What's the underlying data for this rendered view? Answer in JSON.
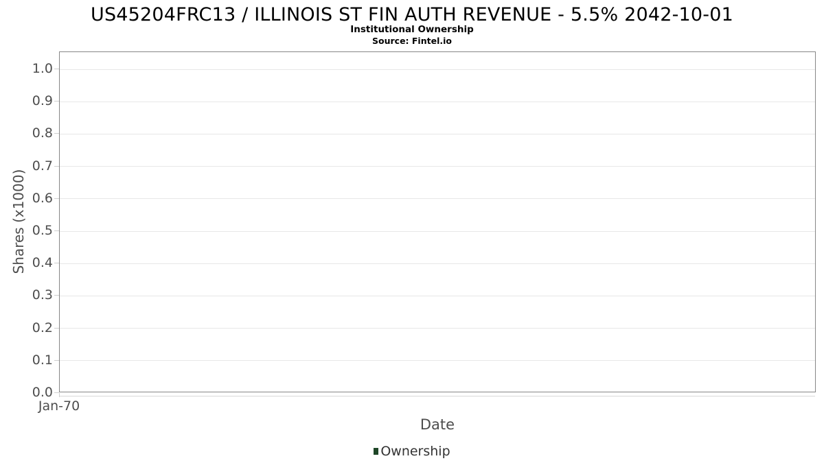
{
  "chart_data": {
    "type": "line",
    "title": "US45204FRC13 / ILLINOIS ST FIN AUTH REVENUE - 5.5% 2042-10-01",
    "subtitle": "Institutional Ownership",
    "source": "Source: Fintel.io",
    "xlabel": "Date",
    "ylabel": "Shares (x1000)",
    "x_tick_labels": [
      "Jan-70"
    ],
    "y_tick_labels": [
      "0.0",
      "0.1",
      "0.2",
      "0.3",
      "0.4",
      "0.5",
      "0.6",
      "0.7",
      "0.8",
      "0.9",
      "1.0"
    ],
    "ylim": [
      0,
      1.05
    ],
    "grid": true,
    "legend_position": "bottom",
    "series": [
      {
        "name": "Ownership",
        "color": "#1e4627",
        "x": [],
        "values": []
      }
    ]
  },
  "colors": {
    "plot_border": "#868686",
    "gridline": "#e7e7e7",
    "axis_line": "#d8d8d8",
    "tick": "#cfcfcf",
    "tick_label": "#4d4d4d",
    "legend_marker": "#1e4627",
    "background": "#ffffff"
  }
}
